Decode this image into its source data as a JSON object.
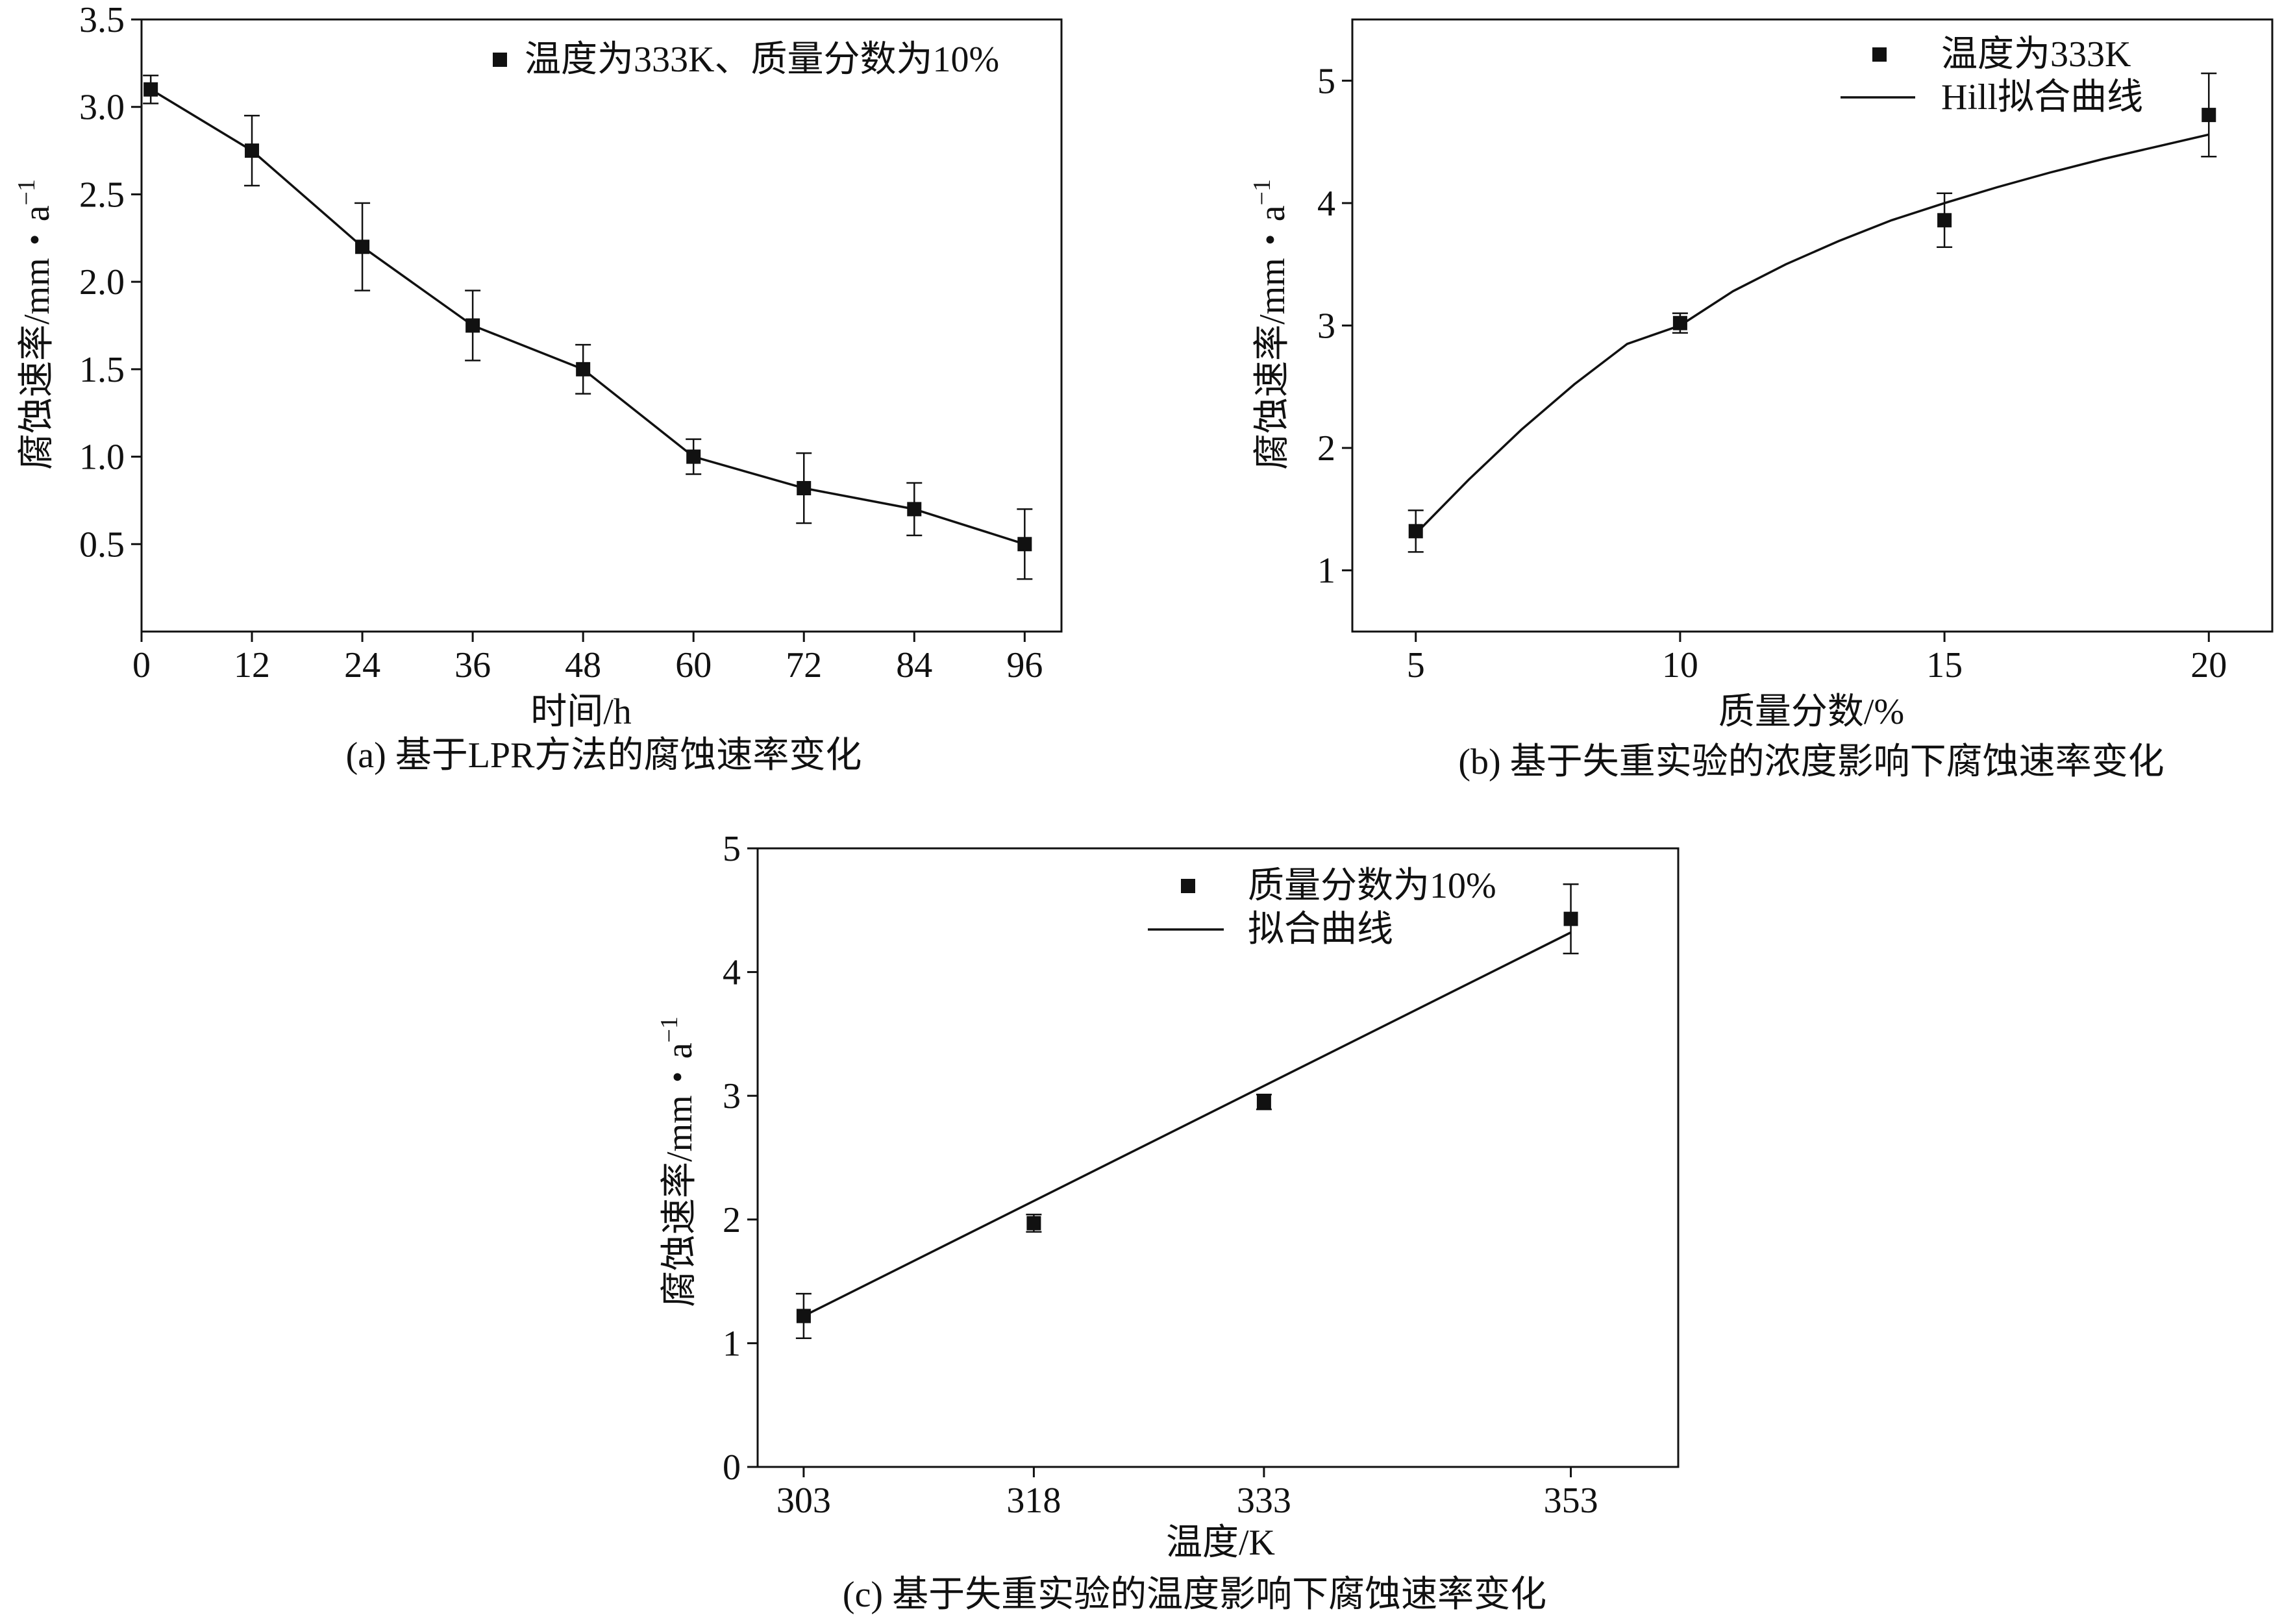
{
  "chart_data": [
    {
      "id": "a",
      "type": "line",
      "caption": "(a) 基于LPR方法的腐蚀速率变化",
      "xlabel": "时间/h",
      "ylabel_main": "腐蚀速率/mm・a",
      "ylabel_sup": "−1",
      "xlim": [
        0,
        100
      ],
      "ylim": [
        0,
        3.5
      ],
      "xticks": [
        0,
        12,
        24,
        36,
        48,
        60,
        72,
        84,
        96
      ],
      "yticks": [
        0.5,
        1.0,
        1.5,
        2.0,
        2.5,
        3.0,
        3.5
      ],
      "ytick_format": "1f",
      "grid": false,
      "legend_position": "top-right",
      "series": [
        {
          "name": "温度为333K、质量分数为10%",
          "marker": "square",
          "connect": true,
          "x": [
            1,
            12,
            24,
            36,
            48,
            60,
            72,
            84,
            96
          ],
          "y": [
            3.1,
            2.75,
            2.2,
            1.75,
            1.5,
            1.0,
            0.82,
            0.7,
            0.5
          ],
          "err": [
            0.08,
            0.2,
            0.25,
            0.2,
            0.14,
            0.1,
            0.2,
            0.15,
            0.2
          ]
        }
      ]
    },
    {
      "id": "b",
      "type": "scatter",
      "caption": "(b) 基于失重实验的浓度影响下腐蚀速率变化",
      "xlabel": "质量分数/%",
      "ylabel_main": "腐蚀速率/mm・a",
      "ylabel_sup": "−1",
      "xlim": [
        3.8,
        21.2
      ],
      "ylim": [
        0.5,
        5.5
      ],
      "xticks": [
        5,
        10,
        15,
        20
      ],
      "yticks": [
        1,
        2,
        3,
        4,
        5
      ],
      "ytick_format": "0f",
      "grid": false,
      "legend_position": "top-right",
      "series": [
        {
          "name": "温度为333K",
          "marker": "square",
          "connect": false,
          "x": [
            5,
            10,
            15,
            20
          ],
          "y": [
            1.32,
            3.02,
            3.86,
            4.72
          ],
          "err": [
            0.17,
            0.08,
            0.22,
            0.34
          ]
        }
      ],
      "fit": {
        "name": "Hill拟合曲线",
        "x": [
          5,
          6,
          7,
          8,
          9,
          10,
          11,
          12,
          13,
          14,
          15,
          16,
          17,
          18,
          19,
          20
        ],
        "y": [
          1.3,
          1.74,
          2.15,
          2.52,
          2.85,
          3.0,
          3.28,
          3.5,
          3.69,
          3.86,
          4.0,
          4.13,
          4.25,
          4.36,
          4.46,
          4.56
        ]
      }
    },
    {
      "id": "c",
      "type": "scatter",
      "caption": "(c) 基于失重实验的温度影响下腐蚀速率变化",
      "xlabel": "温度/K",
      "ylabel_main": "腐蚀速率/mm・a",
      "ylabel_sup": "−1",
      "xlim": [
        300,
        360
      ],
      "ylim": [
        0,
        5
      ],
      "xticks": [
        303,
        318,
        333,
        353
      ],
      "yticks": [
        0,
        1,
        2,
        3,
        4,
        5
      ],
      "ytick_format": "0f",
      "grid": false,
      "legend_position": "top-right",
      "series": [
        {
          "name": "质量分数为10%",
          "marker": "square",
          "connect": false,
          "x": [
            303,
            318,
            333,
            353
          ],
          "y": [
            1.22,
            1.97,
            2.95,
            4.43
          ],
          "err": [
            0.18,
            0.07,
            0.06,
            0.28
          ]
        }
      ],
      "fit": {
        "name": "拟合曲线",
        "x": [
          303,
          353
        ],
        "y": [
          1.22,
          4.32
        ]
      }
    }
  ]
}
